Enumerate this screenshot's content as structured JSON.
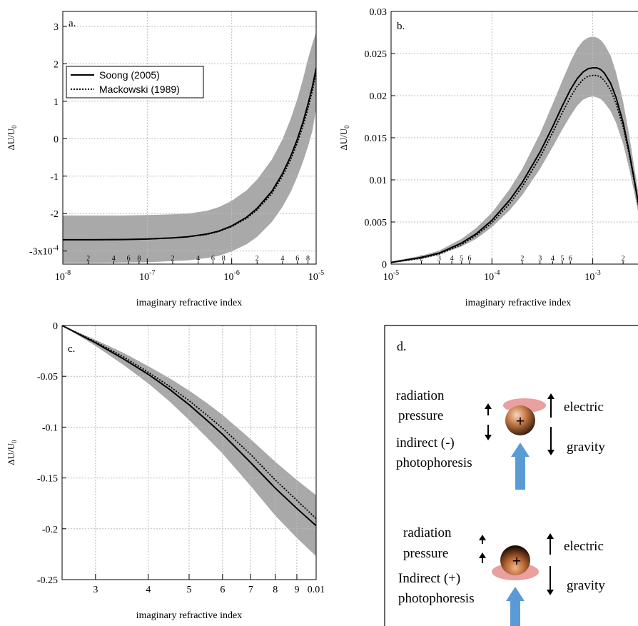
{
  "chart_data": [
    {
      "panel_label": "a.",
      "type": "line",
      "xscale": "log",
      "xlim": [
        1e-08,
        1e-05
      ],
      "ylim": [
        -0.000335,
        0.00034
      ],
      "xlabel": "imaginary refractive index",
      "ylabel": "ΔU/U",
      "ylabel_sub": "0",
      "x_ticks": [
        {
          "value": 1e-08,
          "base": "10",
          "exp": "-8"
        },
        {
          "value": 1e-07,
          "base": "10",
          "exp": "-7"
        },
        {
          "value": 1e-06,
          "base": "10",
          "exp": "-6"
        },
        {
          "value": 1e-05,
          "base": "10",
          "exp": "-5"
        }
      ],
      "x_minor_labels": [
        {
          "value": 2e-08,
          "label": "2"
        },
        {
          "value": 4e-08,
          "label": "4"
        },
        {
          "value": 6e-08,
          "label": "6"
        },
        {
          "value": 8e-08,
          "label": "8"
        },
        {
          "value": 2e-07,
          "label": "2"
        },
        {
          "value": 4e-07,
          "label": "4"
        },
        {
          "value": 6e-07,
          "label": "6"
        },
        {
          "value": 8e-07,
          "label": "8"
        },
        {
          "value": 2e-06,
          "label": "2"
        },
        {
          "value": 4e-06,
          "label": "4"
        },
        {
          "value": 6e-06,
          "label": "6"
        },
        {
          "value": 8e-06,
          "label": "8"
        }
      ],
      "y_ticks": [
        {
          "value": 0.0003,
          "label": "3"
        },
        {
          "value": 0.0002,
          "label": "2"
        },
        {
          "value": 0.0001,
          "label": "1"
        },
        {
          "value": 0,
          "label": "0"
        },
        {
          "value": -0.0001,
          "label": "-1"
        },
        {
          "value": -0.0002,
          "label": "-2"
        },
        {
          "value": -0.0003,
          "label": "-3x10",
          "exp": "-4"
        }
      ],
      "grid": true,
      "legend": {
        "position": "upper-left",
        "entries": [
          {
            "label": "Soong (2005)",
            "style": "solid"
          },
          {
            "label": "Mackowski (1989)",
            "style": "dotted"
          }
        ]
      },
      "series": [
        {
          "name": "Soong (2005)",
          "style": "solid",
          "x": [
            1e-08,
            2e-08,
            5e-08,
            1e-07,
            2e-07,
            3e-07,
            5e-07,
            7e-07,
            1e-06,
            1.5e-06,
            2e-06,
            3e-06,
            4e-06,
            5e-06,
            6e-06,
            7e-06,
            8e-06,
            9e-06,
            1e-05
          ],
          "y": [
            -0.00027,
            -0.00027,
            -0.0002695,
            -0.000268,
            -0.000265,
            -0.000262,
            -0.000255,
            -0.000247,
            -0.000233,
            -0.00021,
            -0.000186,
            -0.00014,
            -9.3e-05,
            -4.7e-05,
            -1e-06,
            4.5e-05,
            9.2e-05,
            0.000138,
            0.000188
          ]
        },
        {
          "name": "Mackowski (1989)",
          "style": "dotted",
          "x": [
            1e-08,
            2e-08,
            5e-08,
            1e-07,
            2e-07,
            3e-07,
            5e-07,
            7e-07,
            1e-06,
            1.5e-06,
            2e-06,
            3e-06,
            4e-06,
            5e-06,
            6e-06,
            7e-06,
            8e-06,
            9e-06,
            1e-05
          ],
          "y": [
            -0.00027,
            -0.00027,
            -0.0002695,
            -0.000268,
            -0.000265,
            -0.000262,
            -0.000256,
            -0.000248,
            -0.000235,
            -0.000213,
            -0.00019,
            -0.000146,
            -0.0001,
            -5.6e-05,
            -1e-05,
            3.5e-05,
            8e-05,
            0.000127,
            0.000175
          ]
        }
      ],
      "band": {
        "x": [
          1e-08,
          2e-08,
          5e-08,
          1e-07,
          2e-07,
          3e-07,
          5e-07,
          7e-07,
          1e-06,
          1.5e-06,
          2e-06,
          3e-06,
          4e-06,
          5e-06,
          6e-06,
          7e-06,
          8e-06,
          9e-06,
          1e-05
        ],
        "lower": [
          -0.000332,
          -0.000332,
          -0.000331,
          -0.00033,
          -0.000327,
          -0.000325,
          -0.000319,
          -0.000313,
          -0.000301,
          -0.000282,
          -0.000262,
          -0.000222,
          -0.000182,
          -0.000142,
          -0.000101,
          -6.1e-05,
          -2.1e-05,
          2e-05,
          8e-05
        ],
        "upper": [
          -0.000205,
          -0.000205,
          -0.000205,
          -0.000204,
          -0.000202,
          -0.0002,
          -0.000193,
          -0.000183,
          -0.000166,
          -0.000138,
          -0.000109,
          -5.5e-05,
          -1e-06,
          5.3e-05,
          0.000107,
          0.00016,
          0.000213,
          0.000253,
          0.000285
        ]
      }
    },
    {
      "panel_label": "b.",
      "type": "line",
      "xscale": "log",
      "xlim": [
        1e-05,
        0.003
      ],
      "ylim": [
        0,
        0.03
      ],
      "xlabel": "imaginary refractive index",
      "ylabel": "ΔU/U",
      "ylabel_sub": "0",
      "x_ticks": [
        {
          "value": 1e-05,
          "base": "10",
          "exp": "-5"
        },
        {
          "value": 0.0001,
          "base": "10",
          "exp": "-4"
        },
        {
          "value": 0.001,
          "base": "10",
          "exp": "-3"
        }
      ],
      "x_minor_labels": [
        {
          "value": 2e-05,
          "label": "2"
        },
        {
          "value": 3e-05,
          "label": "3"
        },
        {
          "value": 4e-05,
          "label": "4"
        },
        {
          "value": 5e-05,
          "label": "5"
        },
        {
          "value": 6e-05,
          "label": "6"
        },
        {
          "value": 0.0002,
          "label": "2"
        },
        {
          "value": 0.0003,
          "label": "3"
        },
        {
          "value": 0.0004,
          "label": "4"
        },
        {
          "value": 0.0005,
          "label": "5"
        },
        {
          "value": 0.0006,
          "label": "6"
        },
        {
          "value": 0.002,
          "label": "2"
        }
      ],
      "y_ticks": [
        {
          "value": 0.03,
          "label": "0.03"
        },
        {
          "value": 0.025,
          "label": "0.025"
        },
        {
          "value": 0.02,
          "label": "0.02"
        },
        {
          "value": 0.015,
          "label": "0.015"
        },
        {
          "value": 0.01,
          "label": "0.01"
        },
        {
          "value": 0.005,
          "label": "0.005"
        },
        {
          "value": 0,
          "label": "0"
        }
      ],
      "grid": true,
      "series": [
        {
          "name": "Soong (2005)",
          "style": "solid",
          "x": [
            1e-05,
            2e-05,
            3e-05,
            5e-05,
            7e-05,
            0.0001,
            0.00015,
            0.0002,
            0.0003,
            0.0004,
            0.0005,
            0.0006,
            0.0007,
            0.0008,
            0.0009,
            0.001,
            0.0011,
            0.0012,
            0.0013,
            0.0015,
            0.0017,
            0.002,
            0.0023,
            0.0026,
            0.003
          ],
          "y": [
            0.0002,
            0.0008,
            0.0013,
            0.0025,
            0.0036,
            0.0052,
            0.0076,
            0.0097,
            0.0133,
            0.0163,
            0.0188,
            0.0207,
            0.022,
            0.0228,
            0.0232,
            0.0233,
            0.0233,
            0.0231,
            0.0227,
            0.0215,
            0.0198,
            0.0168,
            0.0133,
            0.0098,
            0.0055
          ]
        },
        {
          "name": "Mackowski (1989)",
          "style": "dotted",
          "x": [
            1e-05,
            2e-05,
            3e-05,
            5e-05,
            7e-05,
            0.0001,
            0.00015,
            0.0002,
            0.0003,
            0.0004,
            0.0005,
            0.0006,
            0.0007,
            0.0008,
            0.0009,
            0.001,
            0.0011,
            0.0012,
            0.0013,
            0.0015,
            0.0017,
            0.002,
            0.0023,
            0.0026,
            0.003
          ],
          "y": [
            0.0002,
            0.0007,
            0.0012,
            0.0023,
            0.0034,
            0.0049,
            0.0072,
            0.0092,
            0.0127,
            0.0156,
            0.018,
            0.0198,
            0.0211,
            0.0219,
            0.0223,
            0.0224,
            0.0224,
            0.0222,
            0.0218,
            0.0207,
            0.0191,
            0.0163,
            0.013,
            0.0096,
            0.0053
          ]
        }
      ],
      "band": {
        "x": [
          1e-05,
          2e-05,
          3e-05,
          5e-05,
          7e-05,
          0.0001,
          0.00015,
          0.0002,
          0.0003,
          0.0004,
          0.0005,
          0.0006,
          0.0007,
          0.0008,
          0.0009,
          0.001,
          0.0011,
          0.0012,
          0.0013,
          0.0015,
          0.0017,
          0.002,
          0.0023,
          0.0026,
          0.003
        ],
        "lower": [
          0.0001,
          0.0006,
          0.0011,
          0.0021,
          0.003,
          0.0044,
          0.0064,
          0.0082,
          0.0113,
          0.0139,
          0.016,
          0.0176,
          0.0188,
          0.0195,
          0.0198,
          0.0199,
          0.0198,
          0.0196,
          0.0192,
          0.0182,
          0.0168,
          0.0143,
          0.0113,
          0.0083,
          0.0045
        ],
        "upper": [
          0.0003,
          0.001,
          0.0016,
          0.003,
          0.0043,
          0.0061,
          0.0089,
          0.0113,
          0.0155,
          0.019,
          0.0218,
          0.024,
          0.0256,
          0.0265,
          0.0269,
          0.027,
          0.0269,
          0.0266,
          0.0261,
          0.0248,
          0.0228,
          0.0193,
          0.0153,
          0.0113,
          0.0065
        ]
      }
    },
    {
      "panel_label": "c.",
      "type": "line",
      "xscale": "log",
      "xlim": [
        0.0025,
        0.01
      ],
      "ylim": [
        -0.25,
        0
      ],
      "xlabel": "imaginary refractive index",
      "ylabel": "ΔU/U",
      "ylabel_sub": "0",
      "x_ticks": [
        {
          "value": 0.003,
          "label": "3"
        },
        {
          "value": 0.004,
          "label": "4"
        },
        {
          "value": 0.005,
          "label": "5"
        },
        {
          "value": 0.006,
          "label": "6"
        },
        {
          "value": 0.007,
          "label": "7"
        },
        {
          "value": 0.008,
          "label": "8"
        },
        {
          "value": 0.009,
          "label": "9"
        },
        {
          "value": 0.01,
          "label": "0.01"
        }
      ],
      "y_ticks": [
        {
          "value": 0,
          "label": "0"
        },
        {
          "value": -0.05,
          "label": "-0.05"
        },
        {
          "value": -0.1,
          "label": "-0.1"
        },
        {
          "value": -0.15,
          "label": "-0.15"
        },
        {
          "value": -0.2,
          "label": "-0.2"
        },
        {
          "value": -0.25,
          "label": "-0.25"
        }
      ],
      "grid": true,
      "series": [
        {
          "name": "Soong (2005)",
          "style": "solid",
          "x": [
            0.0025,
            0.003,
            0.0035,
            0.004,
            0.0045,
            0.005,
            0.0055,
            0.006,
            0.007,
            0.008,
            0.009,
            0.01
          ],
          "y": [
            0,
            -0.017,
            -0.033,
            -0.048,
            -0.063,
            -0.078,
            -0.093,
            -0.107,
            -0.135,
            -0.16,
            -0.18,
            -0.197
          ]
        },
        {
          "name": "Mackowski (1989)",
          "style": "dotted",
          "x": [
            0.0025,
            0.003,
            0.0035,
            0.004,
            0.0045,
            0.005,
            0.0055,
            0.006,
            0.007,
            0.008,
            0.009,
            0.01
          ],
          "y": [
            0,
            -0.016,
            -0.031,
            -0.046,
            -0.06,
            -0.074,
            -0.088,
            -0.101,
            -0.127,
            -0.152,
            -0.172,
            -0.19
          ]
        }
      ],
      "band": {
        "x": [
          0.0025,
          0.003,
          0.0035,
          0.004,
          0.0045,
          0.005,
          0.0055,
          0.006,
          0.007,
          0.008,
          0.009,
          0.01
        ],
        "lower": [
          0,
          -0.02,
          -0.039,
          -0.057,
          -0.075,
          -0.093,
          -0.11,
          -0.126,
          -0.158,
          -0.187,
          -0.209,
          -0.227
        ],
        "upper": [
          0,
          -0.014,
          -0.027,
          -0.04,
          -0.052,
          -0.064,
          -0.076,
          -0.088,
          -0.112,
          -0.134,
          -0.152,
          -0.167
        ]
      }
    }
  ],
  "panel_d": {
    "label": "d.",
    "top": {
      "radiation_label_1": "radiation",
      "radiation_label_2": "pressure",
      "photophoresis_label_1": "indirect (-)",
      "photophoresis_label_2": "photophoresis",
      "electric_label": "electric",
      "gravity_label": "gravity",
      "charge_symbol": "+"
    },
    "bottom": {
      "radiation_label_1": "radiation",
      "radiation_label_2": "pressure",
      "photophoresis_label_1": "Indirect (+)",
      "photophoresis_label_2": "photophoresis",
      "electric_label": "electric",
      "gravity_label": "gravity",
      "charge_symbol": "+"
    },
    "colors": {
      "light_arrow": "#5b9bd5",
      "hot_side": "#e8a0a0",
      "particle": "#b8703a"
    }
  },
  "colors": {
    "band": "#a9a9a9",
    "line": "#000000",
    "grid": "#bdbdbd"
  }
}
